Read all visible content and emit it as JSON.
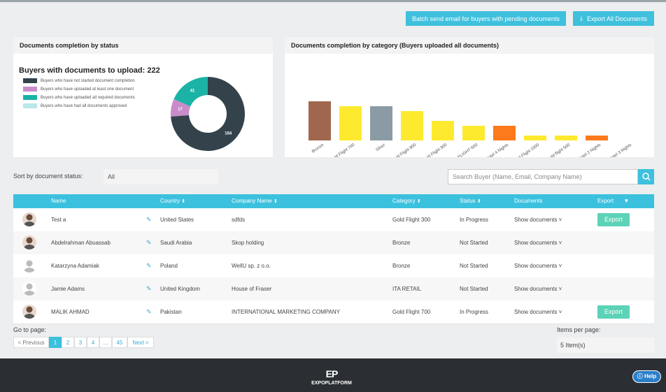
{
  "header": {
    "batch_button": "Batch send email for buyers with pending documents",
    "export_all_button": "Export All Documents"
  },
  "status_panel": {
    "title": "Documents completion by status",
    "subtitle": "Buyers with documents to upload: 222",
    "legend": [
      "Buyers who have not started document completion",
      "Buyers who have uploaded at least one document",
      "Buyers who have uploaded all required documents",
      "Buyers who have had all documents approved"
    ],
    "colors": [
      "#33424b",
      "#c98bc9",
      "#1ab3a6",
      "#b8e8ea"
    ],
    "values": [
      164,
      17,
      41,
      0
    ]
  },
  "category_panel": {
    "title": "Documents completion by category (Buyers uploaded all documents)",
    "categories": [
      "Bronze",
      "Gold Flight 700",
      "Silver",
      "Gold Flight 800",
      "Gold Flight 300",
      "GOLD FLIGHT 600",
      "Gold Hotel 4 Nights",
      "Gold Flight 1000",
      "Gold flight 500",
      "Gold Hotel 2 Nights",
      "Gold Hotel 3 Nights"
    ],
    "values": [
      8,
      7,
      7,
      6,
      4,
      3,
      3,
      1,
      1,
      1,
      0
    ],
    "colors": [
      "#a0674e",
      "#fdea2e",
      "#8a9ba5",
      "#fdea2e",
      "#fdea2e",
      "#fdea2e",
      "#fc7a1c",
      "#fdea2e",
      "#fdea2e",
      "#fc7a1c",
      "#fc7a1c"
    ]
  },
  "filter": {
    "label": "Sort by document status:",
    "value": "All",
    "search_placeholder": "Search Buyer (Name, Email, Company Name)"
  },
  "table": {
    "headers": [
      "Name",
      "Country",
      "Company Name",
      "Category",
      "Status",
      "Documents",
      "Export"
    ],
    "rows": [
      {
        "name": "Test a",
        "country": "United States",
        "company": "sdfds",
        "category": "Gold Flight 300",
        "status": "In Progress",
        "documents": "Show documents",
        "export": "Export"
      },
      {
        "name": "Abdelrahman Abuassab",
        "country": "Saudi Arabia",
        "company": "Skop holding",
        "category": "Bronze",
        "status": "Not Started",
        "documents": "Show documents"
      },
      {
        "name": "Katarzyna Adamiak",
        "country": "Poland",
        "company": "WellU sp. z o.o.",
        "category": "Bronze",
        "status": "Not Started",
        "documents": "Show documents"
      },
      {
        "name": "Jamie Adams",
        "country": "United Kingdom",
        "company": "House of Fraser",
        "category": "ITA RETAIL",
        "status": "Not Started",
        "documents": "Show documents"
      },
      {
        "name": "MALIK AHMAD",
        "country": "Pakistan",
        "company": "INTERNATIONAL MARKETING COMPANY",
        "category": "Gold Flight 700",
        "status": "In Progress",
        "documents": "Show documents",
        "export": "Export"
      }
    ]
  },
  "pagination": {
    "go_to": "Go to page:",
    "prev": "< Previous",
    "pages": [
      "1",
      "2",
      "3",
      "4",
      "...",
      "45"
    ],
    "next": "Next >",
    "items_label": "Items per page:",
    "items_value": "5 Item(s)"
  },
  "footer": {
    "logo": "EXPOPLATFORM",
    "help": "Help"
  }
}
